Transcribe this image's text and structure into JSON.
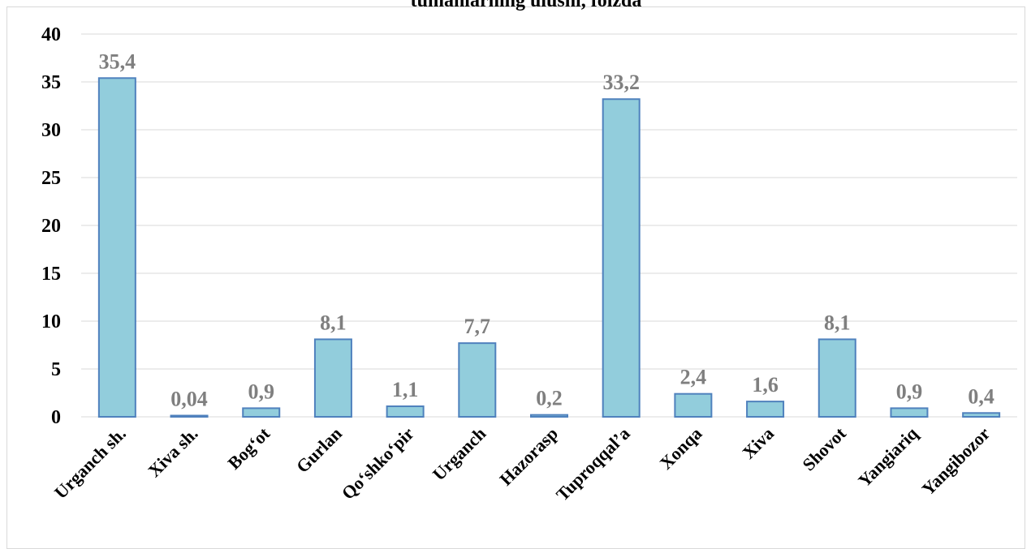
{
  "chart_data": {
    "type": "bar",
    "title": "tumanlarning ulushi, foizda",
    "categories": [
      "Urganch sh.",
      "Xiva sh.",
      "Bog‘ot",
      "Gurlan",
      "Qo‘shko‘pir",
      "Urganch",
      "Hazorasp",
      "Tuproqqal’a",
      "Xonqa",
      "Xiva",
      "Shovot",
      "Yangiariq",
      "Yangibozor"
    ],
    "values": [
      35.4,
      0.04,
      0.9,
      8.1,
      1.1,
      7.7,
      0.2,
      33.2,
      2.4,
      1.6,
      8.1,
      0.9,
      0.4
    ],
    "data_labels": [
      "35,4",
      "0,04",
      "0,9",
      "8,1",
      "1,1",
      "7,7",
      "0,2",
      "33,2",
      "2,4",
      "1,6",
      "8,1",
      "0,9",
      "0,4"
    ],
    "ylim": [
      0,
      40
    ],
    "yticks": [
      0,
      5,
      10,
      15,
      20,
      25,
      30,
      35,
      40
    ],
    "grid": true,
    "colors": {
      "bar_fill": "#92cddc",
      "bar_stroke": "#4f81bd",
      "data_label": "#7f7f7f",
      "grid": "#d9d9d9"
    }
  }
}
